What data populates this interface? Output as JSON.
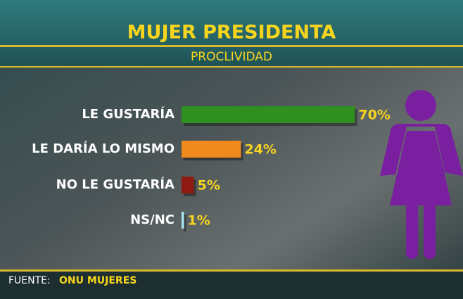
{
  "chart_data": {
    "type": "bar",
    "orientation": "horizontal",
    "title": "MUJER PRESIDENTA",
    "subtitle": "PROCLIVIDAD",
    "categories": [
      "LE GUSTARÍA",
      "LE DARÍA LO MISMO",
      "NO LE GUSTARÍA",
      "NS/NC"
    ],
    "values": [
      70,
      24,
      5,
      1
    ],
    "value_labels": [
      "70%",
      "24%",
      "5%",
      "1%"
    ],
    "colors": [
      "#2f8f1f",
      "#f0891e",
      "#8e1a12",
      "#a9e3f2"
    ],
    "source_label": "FUENTE:",
    "source": "ONU MUJERES"
  }
}
